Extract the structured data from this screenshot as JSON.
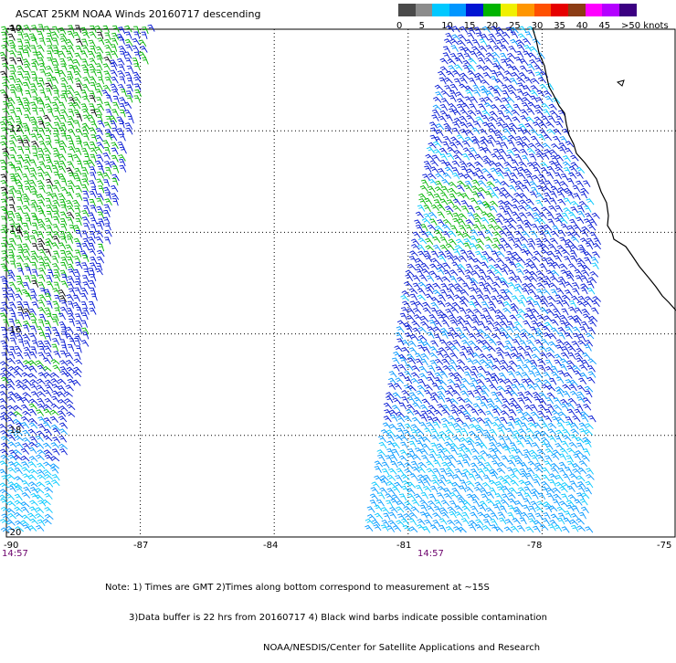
{
  "title": "ASCAT 25KM NOAA Winds 20160717 descending",
  "legend": {
    "colors": [
      "#4a4a4a",
      "#8c8c8c",
      "#00c8ff",
      "#0096ff",
      "#0014d2",
      "#00b400",
      "#f0f000",
      "#ff9600",
      "#ff5000",
      "#e60000",
      "#8c3c14",
      "#ff00ff",
      "#b400ff",
      "#3c0082"
    ],
    "labels": [
      "0",
      "5",
      "10",
      "15",
      "20",
      "25",
      "30",
      "35",
      "40",
      "45",
      ">50 knots"
    ]
  },
  "map": {
    "lat_range": [
      -20,
      -10
    ],
    "lon_range": [
      -90,
      -75
    ],
    "y_labels": [
      "-10",
      "-12",
      "-14",
      "-16",
      "-18",
      "-20"
    ],
    "x_labels": [
      "-90",
      "-87",
      "-84",
      "-81",
      "-78",
      "-75"
    ],
    "pass_times": [
      "14:57",
      "14:57"
    ]
  },
  "notes": [
    "Note: 1) Times are GMT 2)Times along bottom correspond to measurement at ~15S",
    "3)Data buffer is 22 hrs from 20160717 4) Black wind barbs indicate possible contamination",
    "NOAA/NESDIS/Center for Satellite Applications and Research"
  ]
}
